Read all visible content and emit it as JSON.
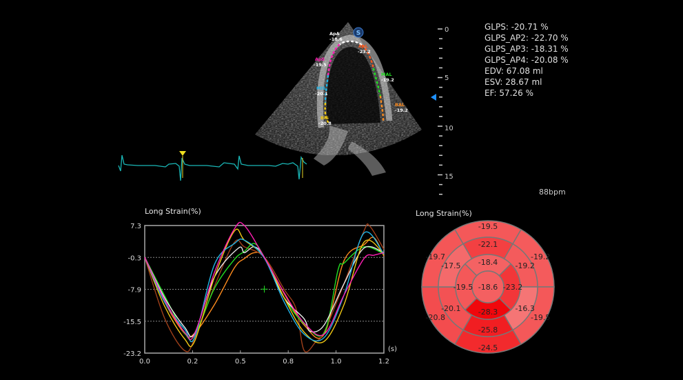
{
  "measurements": [
    "GLPS: -20.71 %",
    "GLPS_AP2: -22.70 %",
    "GLPS_AP3: -18.31 %",
    "GLPS_AP4: -20.08 %",
    "EDV: 67.08 ml",
    "ESV: 28.67 ml",
    "EF: 57.26 %"
  ],
  "heart_rate": "88bpm",
  "depth_scale": {
    "labels": [
      "0",
      "5",
      "10",
      "15"
    ],
    "focus_marker_color": "#1e90ff"
  },
  "echo": {
    "orientation_badge": "S",
    "segments": [
      {
        "name": "ApA",
        "value": "-18.6",
        "color": "#ffffff"
      },
      {
        "name": "ApL",
        "value": "-23.2",
        "color": "#ff5a1e"
      },
      {
        "name": "ApS",
        "value": "-19.5",
        "color": "#ff1eb4"
      },
      {
        "name": "MAL",
        "value": "-19.2",
        "color": "#22dd22"
      },
      {
        "name": "MIS",
        "value": "-20.1",
        "color": "#22b4e6"
      },
      {
        "name": "BAL",
        "value": "-19.2",
        "color": "#ff8c1e"
      },
      {
        "name": "BIS",
        "value": "-20.8",
        "color": "#f0c814"
      }
    ]
  },
  "ecg": {
    "color": "#1ab8b8",
    "marker_color": "#f0e020"
  },
  "chart_data": {
    "type": "line",
    "title": "Long Strain(%)",
    "xlabel": "(s)",
    "xlim": [
      0,
      1.2
    ],
    "ylim": [
      -23.2,
      7.3
    ],
    "xtick_labels": [
      "0.0",
      "0.2",
      "0.5",
      "0.8",
      "1.0",
      "1.2"
    ],
    "ytick_labels": [
      "7.3",
      "-0.3",
      "-7.9",
      "-15.5",
      "-23.2"
    ],
    "grid": "dashed horizontal at inner y ticks",
    "cursor": {
      "x": 0.6,
      "y": -7.9,
      "color": "#22dd22"
    },
    "series": [
      {
        "color": "#ff8c1e",
        "points": [
          [
            0,
            -0.3
          ],
          [
            0.1,
            -11
          ],
          [
            0.2,
            -18.5
          ],
          [
            0.25,
            -18.5
          ],
          [
            0.35,
            -11.6
          ],
          [
            0.45,
            -2.8
          ],
          [
            0.5,
            -0.6
          ],
          [
            0.55,
            0.8
          ],
          [
            0.6,
            -0.3
          ],
          [
            0.7,
            -9
          ],
          [
            0.8,
            -16.5
          ],
          [
            0.9,
            -18.7
          ],
          [
            1.0,
            -1.1
          ],
          [
            1.1,
            2.7
          ],
          [
            1.15,
            4.4
          ],
          [
            1.2,
            0
          ]
        ]
      },
      {
        "color": "#a0401a",
        "points": [
          [
            0,
            -0.3
          ],
          [
            0.1,
            -14.9
          ],
          [
            0.2,
            -22.6
          ],
          [
            0.25,
            -19.8
          ],
          [
            0.35,
            -7.2
          ],
          [
            0.45,
            3.3
          ],
          [
            0.5,
            2.2
          ],
          [
            0.6,
            -0.3
          ],
          [
            0.7,
            -8
          ],
          [
            0.76,
            -12.7
          ],
          [
            0.8,
            -22.6
          ],
          [
            0.86,
            -20.4
          ],
          [
            0.9,
            -18.2
          ],
          [
            1.0,
            -6.6
          ],
          [
            1.1,
            6
          ],
          [
            1.13,
            7.1
          ],
          [
            1.2,
            1.6
          ]
        ]
      },
      {
        "color": "#22dd22",
        "points": [
          [
            0,
            -0.3
          ],
          [
            0.1,
            -9.5
          ],
          [
            0.2,
            -18.4
          ],
          [
            0.25,
            -19
          ],
          [
            0.35,
            -7.7
          ],
          [
            0.45,
            -0.8
          ],
          [
            0.5,
            1.1
          ],
          [
            0.55,
            3
          ],
          [
            0.6,
            -0.3
          ],
          [
            0.7,
            -10
          ],
          [
            0.8,
            -16.2
          ],
          [
            0.9,
            -18.4
          ],
          [
            0.97,
            -3.3
          ],
          [
            1.0,
            -1.7
          ],
          [
            1.1,
            2.2
          ],
          [
            1.2,
            0.5
          ]
        ]
      },
      {
        "color": "#e8e8e8",
        "points": [
          [
            0,
            -0.3
          ],
          [
            0.1,
            -10
          ],
          [
            0.2,
            -17
          ],
          [
            0.25,
            -18.5
          ],
          [
            0.35,
            -5
          ],
          [
            0.47,
            1.9
          ],
          [
            0.5,
            0.8
          ],
          [
            0.55,
            2.2
          ],
          [
            0.6,
            -0.3
          ],
          [
            0.7,
            -10
          ],
          [
            0.8,
            -15
          ],
          [
            0.83,
            -18
          ],
          [
            0.9,
            -16.5
          ],
          [
            1.0,
            -6.6
          ],
          [
            1.1,
            1.9
          ],
          [
            1.2,
            0.8
          ]
        ]
      },
      {
        "color": "#f0c814",
        "points": [
          [
            0,
            -0.3
          ],
          [
            0.1,
            -12
          ],
          [
            0.2,
            -19.8
          ],
          [
            0.25,
            -20.4
          ],
          [
            0.35,
            -5
          ],
          [
            0.45,
            6
          ],
          [
            0.5,
            3.8
          ],
          [
            0.6,
            -0.3
          ],
          [
            0.7,
            -10
          ],
          [
            0.8,
            -18.2
          ],
          [
            0.9,
            -20.4
          ],
          [
            1.0,
            -11.6
          ],
          [
            1.1,
            3.3
          ],
          [
            1.2,
            0.5
          ]
        ]
      },
      {
        "color": "#22b4e6",
        "points": [
          [
            0,
            -0.3
          ],
          [
            0.1,
            -11
          ],
          [
            0.2,
            -17.5
          ],
          [
            0.25,
            -19.5
          ],
          [
            0.35,
            -2
          ],
          [
            0.45,
            3
          ],
          [
            0.5,
            3.8
          ],
          [
            0.6,
            -0.5
          ],
          [
            0.7,
            -11
          ],
          [
            0.8,
            -18.7
          ],
          [
            0.9,
            -19.5
          ],
          [
            1.0,
            -9.3
          ],
          [
            1.1,
            5.5
          ],
          [
            1.2,
            0.5
          ]
        ]
      },
      {
        "color": "#ff1eb4",
        "points": [
          [
            0,
            -0.3
          ],
          [
            0.1,
            -10.5
          ],
          [
            0.2,
            -18.2
          ],
          [
            0.25,
            -18.7
          ],
          [
            0.35,
            -3.9
          ],
          [
            0.45,
            6.5
          ],
          [
            0.5,
            7.3
          ],
          [
            0.6,
            -0.3
          ],
          [
            0.7,
            -8.8
          ],
          [
            0.8,
            -16
          ],
          [
            0.9,
            -18.7
          ],
          [
            1.0,
            -9.3
          ],
          [
            1.1,
            -0.6
          ],
          [
            1.15,
            0.2
          ],
          [
            1.2,
            0.8
          ]
        ]
      }
    ]
  },
  "bullseye": {
    "title": "Long Strain(%)",
    "basal": [
      {
        "pos": "top",
        "value": "-19.5"
      },
      {
        "pos": "upper-right",
        "value": "-19.2"
      },
      {
        "pos": "lower-right",
        "value": "-19.5"
      },
      {
        "pos": "bottom",
        "value": "-24.5"
      },
      {
        "pos": "lower-left",
        "value": "-20.8"
      },
      {
        "pos": "upper-left",
        "value": "-19.7"
      }
    ],
    "mid": [
      {
        "pos": "top",
        "value": "-22.1"
      },
      {
        "pos": "upper-right",
        "value": "-19.2"
      },
      {
        "pos": "lower-right",
        "value": "-16.3"
      },
      {
        "pos": "bottom",
        "value": "-25.8"
      },
      {
        "pos": "lower-left",
        "value": "-20.1"
      },
      {
        "pos": "upper-left",
        "value": "-17.5"
      }
    ],
    "apical": [
      {
        "pos": "top",
        "value": "-18.4"
      },
      {
        "pos": "right",
        "value": "-23.2"
      },
      {
        "pos": "bottom",
        "value": "-28.3"
      },
      {
        "pos": "left",
        "value": "-19.5"
      }
    ],
    "apex": {
      "value": "-18.6"
    }
  }
}
